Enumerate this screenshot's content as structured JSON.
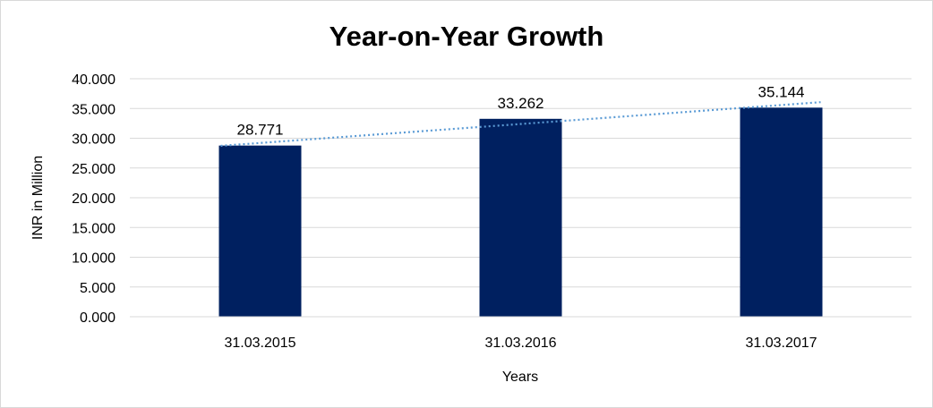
{
  "chart_data": {
    "type": "bar",
    "title": "Year-on-Year Growth",
    "xlabel": "Years",
    "ylabel": "INR in Million",
    "categories": [
      "31.03.2015",
      "31.03.2016",
      "31.03.2017"
    ],
    "values": [
      28.771,
      33.262,
      35.144
    ],
    "value_labels": [
      "28.771",
      "33.262",
      "35.144"
    ],
    "ylim": [
      0,
      40
    ],
    "yticks": [
      0,
      5,
      10,
      15,
      20,
      25,
      30,
      35,
      40
    ],
    "ytick_labels": [
      "0.000",
      "5.000",
      "10.000",
      "15.000",
      "20.000",
      "25.000",
      "30.000",
      "35.000",
      "40.000"
    ],
    "grid": true,
    "legend": "none",
    "bar_color": "#002060",
    "trendline": {
      "type": "linear",
      "style": "dotted",
      "color": "#5b9bd5"
    }
  }
}
